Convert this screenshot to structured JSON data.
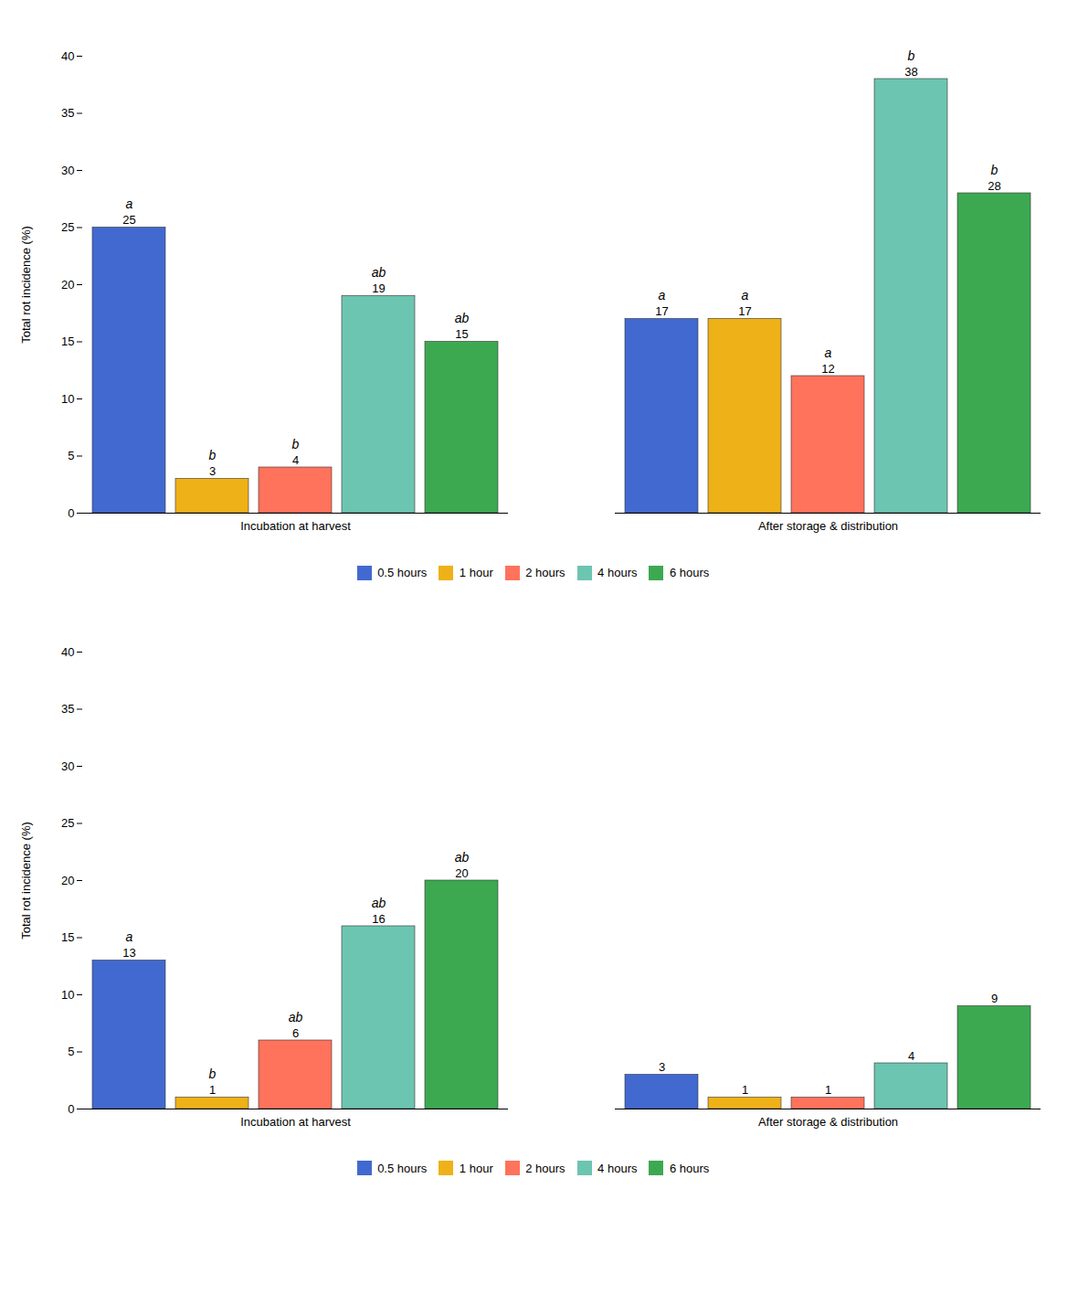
{
  "chart_data": [
    {
      "type": "bar",
      "categories": [
        "Incubation at harvest",
        "After storage & distribution"
      ],
      "series": [
        {
          "name": "0.5 hours",
          "values": [
            25,
            17
          ],
          "letters": [
            "a",
            "a"
          ]
        },
        {
          "name": "1 hour",
          "values": [
            3,
            17
          ],
          "letters": [
            "b",
            "a"
          ]
        },
        {
          "name": "2 hours",
          "values": [
            4,
            12
          ],
          "letters": [
            "b",
            "a"
          ]
        },
        {
          "name": "4 hours",
          "values": [
            19,
            38
          ],
          "letters": [
            "ab",
            "b"
          ]
        },
        {
          "name": "6 hours",
          "values": [
            15,
            28
          ],
          "letters": [
            "ab",
            "b"
          ]
        }
      ],
      "ylabel": "Total rot incidence (%)",
      "ylim": [
        0,
        40
      ],
      "yticks": [
        0,
        5,
        10,
        15,
        20,
        25,
        30,
        35,
        40
      ],
      "grid": false,
      "legend": "bottom",
      "data_labels": true
    },
    {
      "type": "bar",
      "categories": [
        "Incubation at harvest",
        "After storage & distribution"
      ],
      "series": [
        {
          "name": "0.5 hours",
          "values": [
            13,
            3
          ],
          "letters": [
            "a",
            null
          ]
        },
        {
          "name": "1 hour",
          "values": [
            1,
            1
          ],
          "letters": [
            "b",
            null
          ]
        },
        {
          "name": "2 hours",
          "values": [
            6,
            1
          ],
          "letters": [
            "ab",
            null
          ]
        },
        {
          "name": "4 hours",
          "values": [
            16,
            4
          ],
          "letters": [
            "ab",
            null
          ]
        },
        {
          "name": "6 hours",
          "values": [
            20,
            9
          ],
          "letters": [
            "ab",
            null
          ]
        }
      ],
      "ylabel": "Total rot incidence (%)",
      "ylim": [
        0,
        40
      ],
      "yticks": [
        0,
        5,
        10,
        15,
        20,
        25,
        30,
        35,
        40
      ],
      "grid": false,
      "legend": "bottom",
      "data_labels": true
    }
  ]
}
